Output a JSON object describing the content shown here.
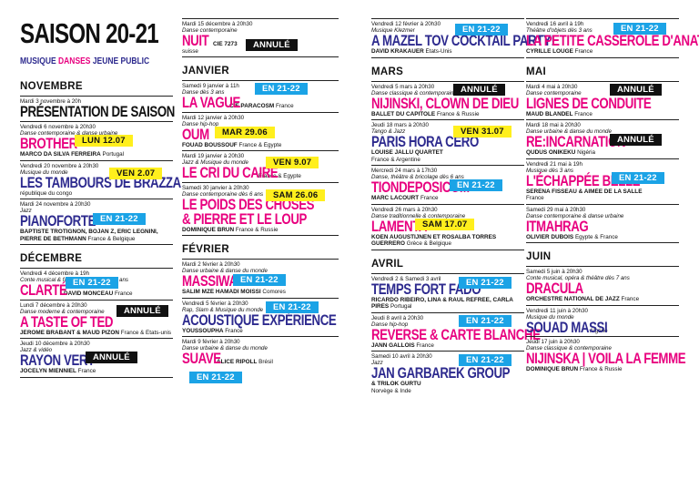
{
  "header": {
    "title": "SAISON 20-21",
    "legend_musique": "MUSIQUE",
    "legend_danses": "DANSES",
    "legend_jeune": "JEUNE PUBLIC"
  },
  "months": {
    "novembre": "NOVEMBRE",
    "decembre": "DÉCEMBRE",
    "janvier": "JANVIER",
    "fevrier": "FÉVRIER",
    "mars": "MARS",
    "avril": "AVRIL",
    "mai": "MAI",
    "juin": "JUIN"
  },
  "events": {
    "e1": {
      "date": "Mardi 3 novembre à 20h",
      "genre": "",
      "title": "PRÉSENTATION DE SAISON",
      "artist": "",
      "country": ""
    },
    "e2": {
      "date": "Vendredi 6 novembre à 20h30",
      "genre": "Danse contemporaine & danse urbaine",
      "title": "BROTHER",
      "artist": "MARCO DA SILVA FERREIRA",
      "country": "Portugal",
      "badge": "LUN 12.07"
    },
    "e3": {
      "date": "Vendredi 20 novembre à 20h30",
      "genre": "Musique du monde",
      "title": "LES TAMBOURS DE BRAZZA",
      "artist": "",
      "country": "république du congo",
      "badge": "VEN 2.07"
    },
    "e4": {
      "date": "Mardi 24 novembre à 20h30",
      "genre": "Jazz",
      "title": "PIANOFORTE",
      "artist": "BAPTISTE TROTIGNON, BOJAN Z, ERIC LEGNINI, PIERRE DE BETHMANN",
      "country": "France & Belgique",
      "badge": "EN 21-22"
    },
    "e5": {
      "date": "Vendredi 4 décembre à 19h",
      "genre": "Conte musical & fable humaniste dès 7 ans",
      "title": "CLARTÉ",
      "artist": "DAVID MONCEAU",
      "country": "France",
      "badge": "EN 21-22"
    },
    "e6": {
      "date": "Lundi 7 décembre à 20h30",
      "genre": "Danse moderne & contemporaine",
      "title": "A TASTE OF TED",
      "artist": "JÉRÔME BRABANT & MAUD PIZON",
      "country": "France & États-unis",
      "badge": "ANNULÉ"
    },
    "e7": {
      "date": "Jeudi 10 décembre à 20h30",
      "genre": "Jazz & vidéo",
      "title": "RAYON VERT",
      "artist": "JOCELYN MIENNIEL",
      "country": "France",
      "badge": "ANNULÉ"
    },
    "e8": {
      "date": "Mardi 15 décembre à 20h30",
      "genre": "Danse contemporaine",
      "title": "NUIT",
      "artist": "CIE 7273",
      "country": "suisse",
      "badge": "ANNULÉ"
    },
    "e9": {
      "date": "Samedi 9 janvier à 11h",
      "genre": "Danse dès 3 ans",
      "title": "LA VAGUE",
      "artist": "CIE PARACOSM",
      "country": "France",
      "badge": "EN 21-22"
    },
    "e10": {
      "date": "Mardi 12 janvier à 20h30",
      "genre": "Danse hip-hop",
      "title": "OUM",
      "artist": "FOUAD BOUSSOUF",
      "country": "France & Égypte",
      "badge": "MAR 29.06"
    },
    "e11": {
      "date": "Mardi 19 janvier à 20h30",
      "genre": "Jazz & Musique du monde",
      "title": "LE CRI DU CAIRE",
      "artist": "",
      "country": "France & Égypte",
      "badge": "VEN 9.07"
    },
    "e12": {
      "date": "Samedi 30 janvier à 20h30",
      "genre": "Danse contemporaine dès 6 ans",
      "title1": "LE POIDS DES CHOSES",
      "title2": "& PIERRE ET LE LOUP",
      "artist": "DOMINIQUE BRUN",
      "country": "France & Russie",
      "badge": "SAM 26.06"
    },
    "e13": {
      "date": "Mardi 2 février à 20h30",
      "genre": "Danse urbaine & danse du monde",
      "title": "MASSIWA",
      "artist": "SALIM MZÉ HAMADI MOISSI",
      "country": "Comores",
      "badge": "EN 21-22"
    },
    "e14": {
      "date": "Vendredi 5 février à 20h30",
      "genre": "Rap, Slam & Musique du monde",
      "title": "ACOUSTIQUE EXPÉRIENCE",
      "artist": "YOUSSOUPHA",
      "country": "France",
      "badge": "EN 21-22"
    },
    "e15": {
      "date": "Mardi 9 février à 20h30",
      "genre": "Danse urbaine & danse du monde",
      "title": "SUAVE",
      "artist": "ALICE RIPOLL",
      "country": "Brésil",
      "badge": "EN 21-22"
    },
    "e16": {
      "date": "Vendredi 12 février à 20h30",
      "genre": "Musique Klezmer",
      "title": "A MAZEL TOV COCKTAIL PARTY!",
      "artist": "DAVID KRAKAUER",
      "country": "États-Unis",
      "badge": "EN 21-22"
    },
    "e17": {
      "date": "Vendredi 5 mars à 20h30",
      "genre": "Danse classique & contemporaine",
      "title": "NIJINSKI, CLOWN DE DIEU",
      "artist": "BALLET DU CAPITOLE",
      "country": "France & Russie",
      "badge": "ANNULÉ"
    },
    "e18": {
      "date": "Jeudi 18 mars à 20h30",
      "genre": "Tango & Jazz",
      "title": "PARIS HORA CERO",
      "artist": "LOUISE JALLU QUARTET",
      "country": "France & Argentine",
      "badge": "VEN 31.07"
    },
    "e19": {
      "date": "Mercredi 24 mars à 17h30",
      "genre": "Danse, théâtre & bricolage dès 6 ans",
      "title": "TIONDEPOSICOM",
      "artist": "MARC LACOURT",
      "country": "France",
      "badge": "EN 21-22"
    },
    "e20": {
      "date": "Vendredi 26 mars à 20h30",
      "genre": "Danse traditionnelle & contemporaine",
      "title": "LAMENTA",
      "artist": "KOEN AUGUSTIJNEN ET ROSALBA TORRES GUERRERO",
      "country": "Grèce & Belgique",
      "badge": "SAM 17.07"
    },
    "e21": {
      "date": "Vendredi 2 & Samedi 3 avril",
      "genre": "",
      "title": "TEMPS FORT FADO",
      "artist": "RICARDO RIBEIRO, LINA & RAÚL REFREE, CARLA PIRES",
      "country": "Portugal",
      "badge": "EN 21-22"
    },
    "e22": {
      "date": "Jeudi 8 avril à 20h30",
      "genre": "Danse hip-hop",
      "title": "REVERSE & CARTE BLANCHE",
      "artist": "JANN GALLOIS",
      "country": "France",
      "badge": "EN 21-22"
    },
    "e23": {
      "date": "Samedi 10 avril à 20h30",
      "genre": "Jazz",
      "title": "JAN GARBAREK GROUP",
      "artist": "& TRILOK GURTU",
      "country": "Norvège & Inde",
      "badge": "EN 21-22"
    },
    "e24": {
      "date": "Vendredi 16 avril à 19h",
      "genre": "Théâtre d'objets dès 3 ans",
      "title": "LA PETITE CASSEROLE D'ANATOLE",
      "artist": "CYRILLE LOUGE",
      "country": "France",
      "badge": "EN 21-22"
    },
    "e25": {
      "date": "Mardi 4 mai à 20h30",
      "genre": "Danse contemporaine",
      "title": "LIGNES DE CONDUITE",
      "artist": "MAUD BLANDEL",
      "country": "France",
      "badge": "ANNULÉ"
    },
    "e26": {
      "date": "Mardi 18 mai à 20h30",
      "genre": "Danse urbaine & danse du monde",
      "title": "RE:INCARNATION",
      "artist": "QUDUS ONIKEKU",
      "country": "Nigéria",
      "badge": "ANNULÉ"
    },
    "e27": {
      "date": "Vendredi 21 mai à 19h",
      "genre": "Musique dès 3 ans",
      "title": "L'ÉCHAPPÉE BELLE",
      "artist": "SERENA FISSEAU & AIMÉE DE LA SALLE",
      "country": "France",
      "badge": "EN 21-22"
    },
    "e28": {
      "date": "Samedi 29 mai à 20h30",
      "genre": "Danse contemporaine & danse urbaine",
      "title": "ITMAHRAG",
      "artist": "OLIVIER DUBOIS",
      "country": "Égypte & France"
    },
    "e29": {
      "date": "Samedi 5 juin à 20h30",
      "genre": "Conte musical, opéra & théâtre dès 7 ans",
      "title": "DRACULA",
      "artist": "ORCHESTRE NATIONAL DE JAZZ",
      "country": "France"
    },
    "e30": {
      "date": "Vendredi 11 juin à 20h30",
      "genre": "Musique du monde",
      "title": "SOUAD MASSI",
      "artist": "",
      "country": "Algérie"
    },
    "e31": {
      "date": "Jeudi 17 juin à 20h30",
      "genre": "Danse classique & contemporaine",
      "title": "NIJINSKA | VOILA LA FEMME",
      "artist": "DOMINIQUE BRUN",
      "country": "France & Russie"
    }
  },
  "colors": {
    "pink": "#e8007f",
    "blue": "#2d2a8e",
    "badge_blue": "#1ba3e6",
    "badge_yellow": "#ffef1d",
    "badge_black": "#111111"
  }
}
